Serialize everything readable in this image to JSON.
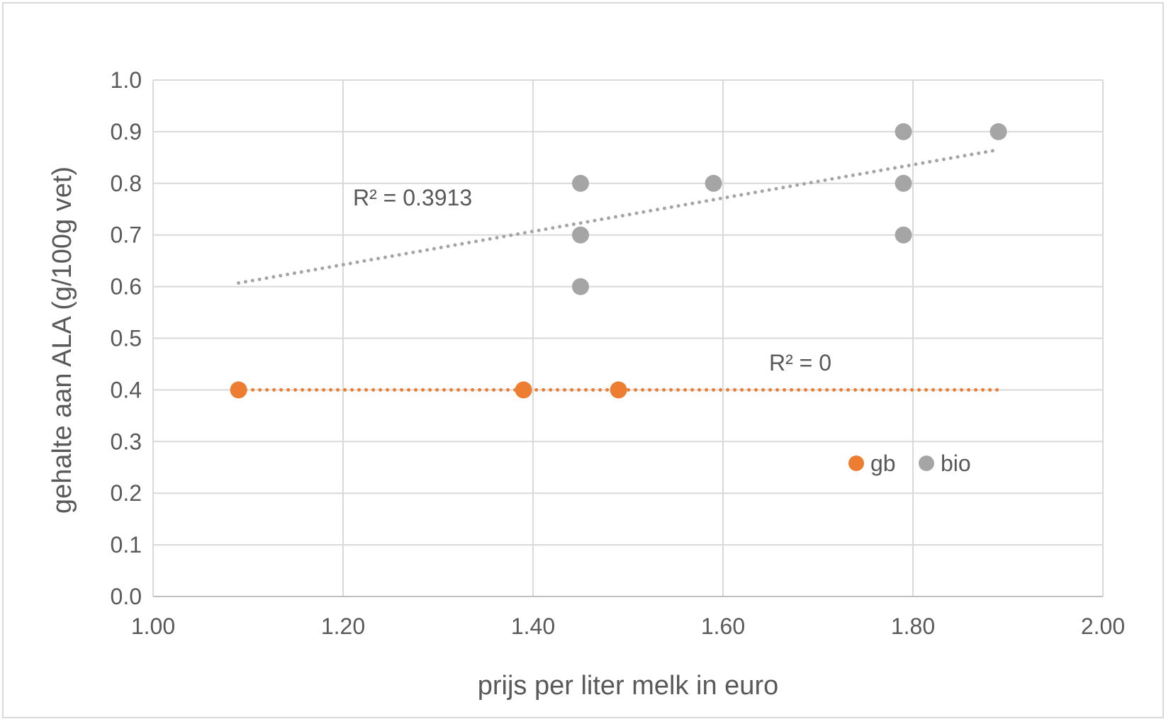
{
  "chart_data": {
    "type": "scatter",
    "title": "",
    "xlabel": "prijs per liter melk in euro",
    "ylabel": "gehalte aan ALA (g/100g vet)",
    "xlim": [
      1.0,
      2.0
    ],
    "ylim": [
      0.0,
      1.0
    ],
    "x_ticks": [
      "1.00",
      "1.20",
      "1.40",
      "1.60",
      "1.80",
      "2.00"
    ],
    "y_ticks": [
      "0.0",
      "0.1",
      "0.2",
      "0.3",
      "0.4",
      "0.5",
      "0.6",
      "0.7",
      "0.8",
      "0.9",
      "1.0"
    ],
    "grid": true,
    "legend_position": "bottom-right",
    "series": [
      {
        "name": "gb",
        "color": "#ED7D31",
        "points": [
          [
            1.09,
            0.4
          ],
          [
            1.39,
            0.4
          ],
          [
            1.49,
            0.4
          ]
        ],
        "trendline": {
          "x": [
            1.09,
            1.89
          ],
          "y": [
            0.4,
            0.4
          ],
          "style": "dotted"
        },
        "r2_label": "R² = 0"
      },
      {
        "name": "bio",
        "color": "#A5A5A5",
        "points": [
          [
            1.45,
            0.8
          ],
          [
            1.45,
            0.7
          ],
          [
            1.45,
            0.6
          ],
          [
            1.59,
            0.8
          ],
          [
            1.79,
            0.9
          ],
          [
            1.79,
            0.8
          ],
          [
            1.79,
            0.7
          ],
          [
            1.89,
            0.9
          ]
        ],
        "trendline": {
          "x": [
            1.09,
            1.89
          ],
          "y": [
            0.607,
            0.865
          ],
          "style": "dotted"
        },
        "r2_label": "R² = 0.3913"
      }
    ]
  }
}
